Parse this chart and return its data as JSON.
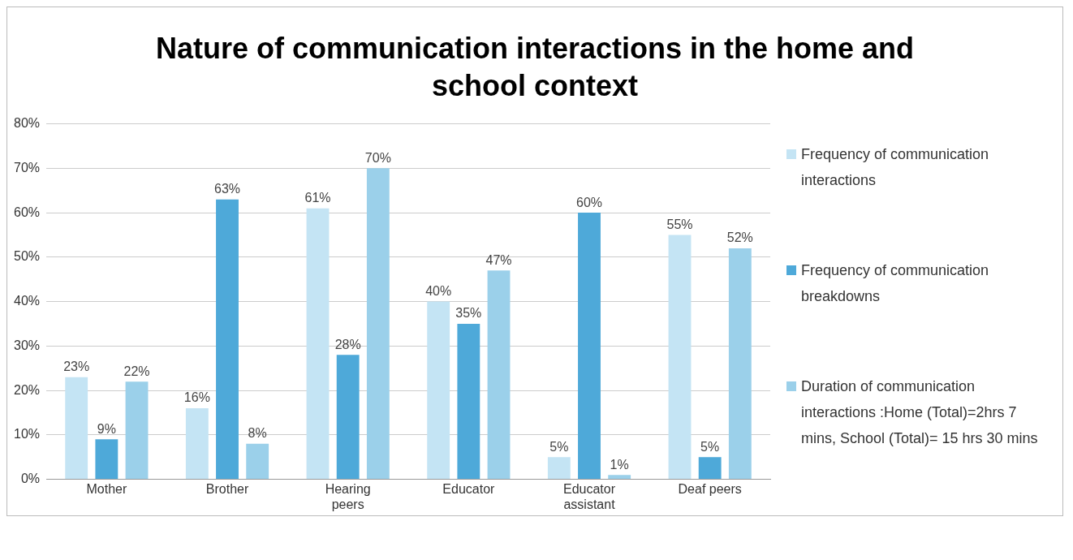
{
  "chart_data": {
    "type": "bar",
    "title": "Nature of communication interactions in the home and school context",
    "categories": [
      "Mother",
      "Brother",
      "Hearing peers",
      "Educator",
      "Educator assistant",
      "Deaf peers"
    ],
    "series": [
      {
        "name": "Frequency of communication interactions",
        "color": "#c4e4f4",
        "values": [
          23,
          16,
          61,
          40,
          5,
          55
        ],
        "value_labels": [
          "23%",
          "16%",
          "61%",
          "40%",
          "5%",
          "55%"
        ]
      },
      {
        "name": "Frequency of communication breakdowns",
        "color": "#4ea9d9",
        "values": [
          9,
          63,
          28,
          35,
          60,
          5
        ],
        "value_labels": [
          "9%",
          "63%",
          "28%",
          "35%",
          "60%",
          "5%"
        ]
      },
      {
        "name": "Duration of communication interactions :Home (Total)=2hrs 7 mins, School (Total)= 15 hrs 30 mins",
        "color": "#9bd0ea",
        "values": [
          22,
          8,
          70,
          47,
          1,
          52
        ],
        "value_labels": [
          "22%",
          "8%",
          "70%",
          "47%",
          "1%",
          "52%"
        ]
      }
    ],
    "ylim": [
      0,
      80
    ],
    "yticks": [
      {
        "value": 0,
        "label": "0%"
      },
      {
        "value": 10,
        "label": "10%"
      },
      {
        "value": 20,
        "label": "20%"
      },
      {
        "value": 30,
        "label": "30%"
      },
      {
        "value": 40,
        "label": "40%"
      },
      {
        "value": 50,
        "label": "50%"
      },
      {
        "value": 60,
        "label": "60%"
      },
      {
        "value": 70,
        "label": "70%"
      },
      {
        "value": 80,
        "label": "80%"
      }
    ],
    "grid": "y",
    "legend": "right"
  }
}
